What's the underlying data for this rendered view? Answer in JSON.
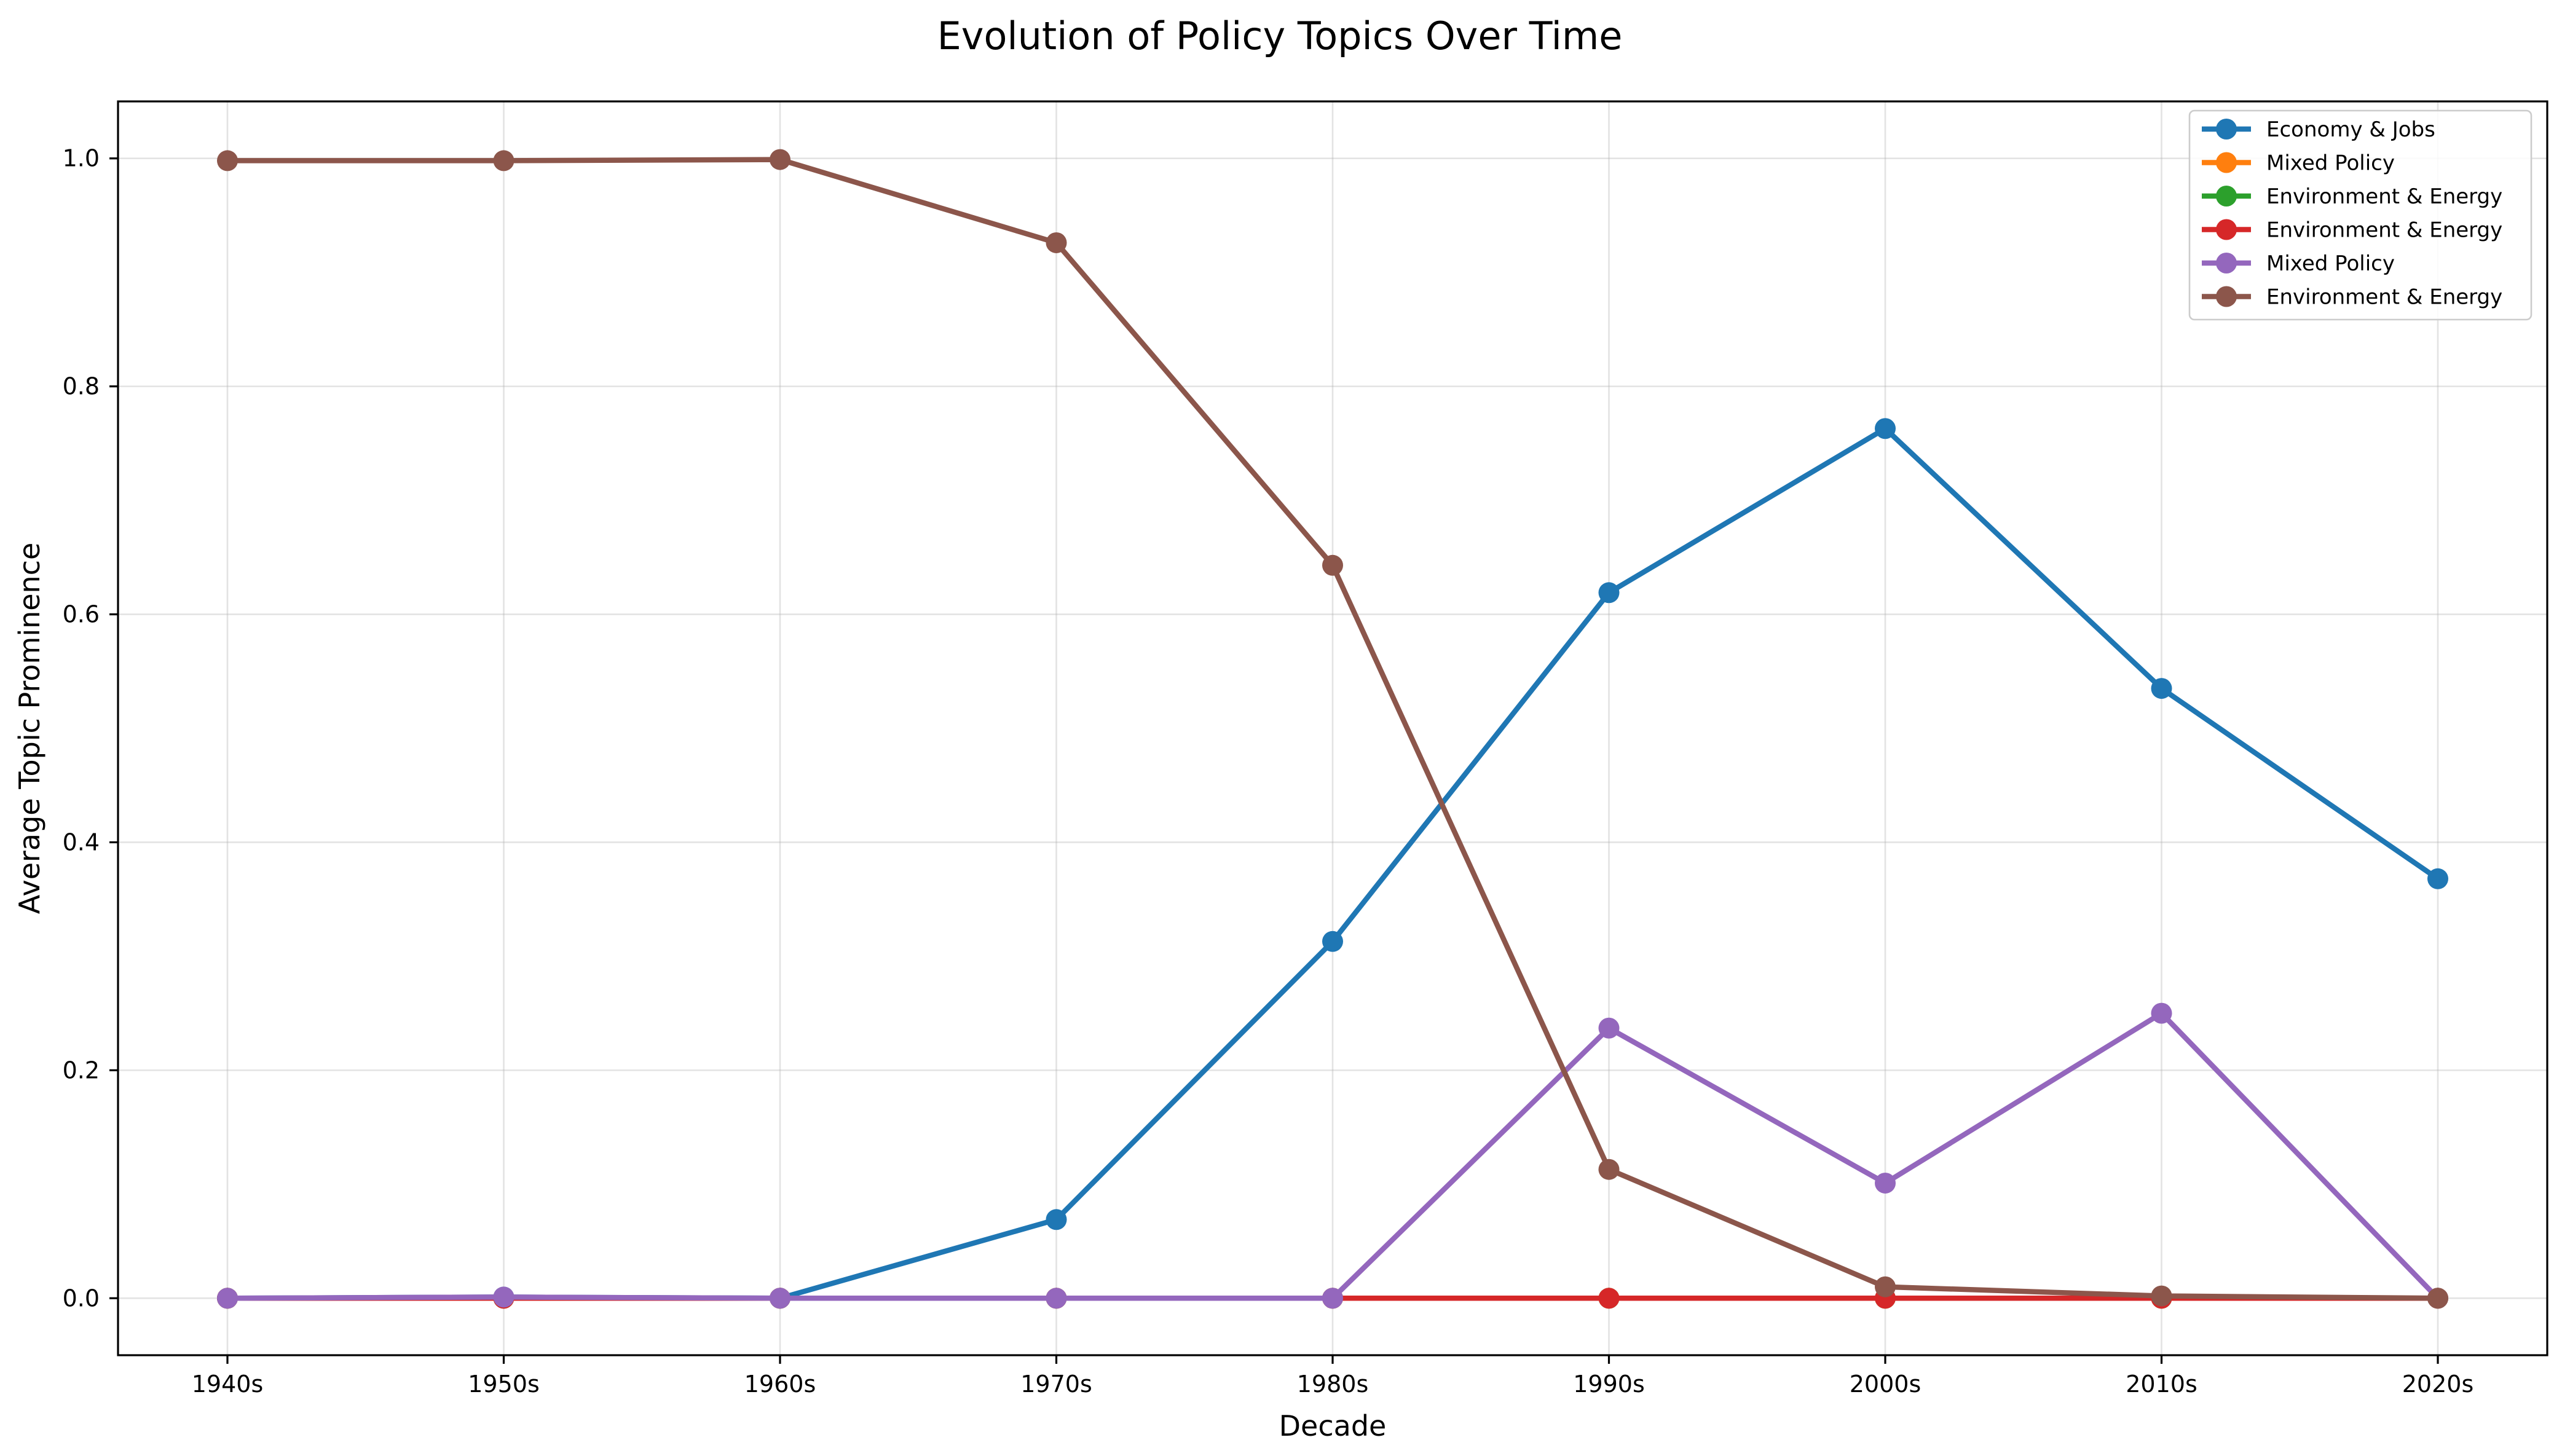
{
  "chart_data": {
    "type": "line",
    "title": "Evolution of Policy Topics Over Time",
    "xlabel": "Decade",
    "ylabel": "Average Topic Prominence",
    "categories": [
      "1940s",
      "1950s",
      "1960s",
      "1970s",
      "1980s",
      "1990s",
      "2000s",
      "2010s",
      "2020s"
    ],
    "ylim": [
      -0.05,
      1.05
    ],
    "yticks": [
      "0.0",
      "0.2",
      "0.4",
      "0.6",
      "0.8",
      "1.0"
    ],
    "grid": true,
    "legend_position": "top-right",
    "series": [
      {
        "name": "Economy & Jobs",
        "color": "#1f77b4",
        "values": [
          0.0,
          0.001,
          0.0,
          0.069,
          0.313,
          0.619,
          0.763,
          0.535,
          0.368
        ]
      },
      {
        "name": "Mixed Policy",
        "color": "#ff7f0e",
        "values": [
          0.0,
          0.0,
          0.0,
          0.0,
          0.0,
          0.0,
          0.0,
          0.0,
          0.0
        ]
      },
      {
        "name": "Environment & Energy",
        "color": "#2ca02c",
        "values": [
          0.0,
          0.0,
          0.0,
          0.0,
          0.0,
          0.0,
          0.0,
          0.0,
          0.0
        ]
      },
      {
        "name": "Environment & Energy",
        "color": "#d62728",
        "values": [
          0.0,
          0.0,
          0.0,
          0.0,
          0.0,
          0.0,
          0.0,
          0.0,
          0.0
        ]
      },
      {
        "name": "Mixed Policy",
        "color": "#9467bd",
        "values": [
          0.0,
          0.001,
          0.0,
          0.0,
          0.0,
          0.237,
          0.101,
          0.25,
          0.0
        ]
      },
      {
        "name": "Environment & Energy",
        "color": "#8c564b",
        "values": [
          0.998,
          0.998,
          0.999,
          0.926,
          0.643,
          0.113,
          0.01,
          0.002,
          0.0
        ]
      }
    ]
  }
}
